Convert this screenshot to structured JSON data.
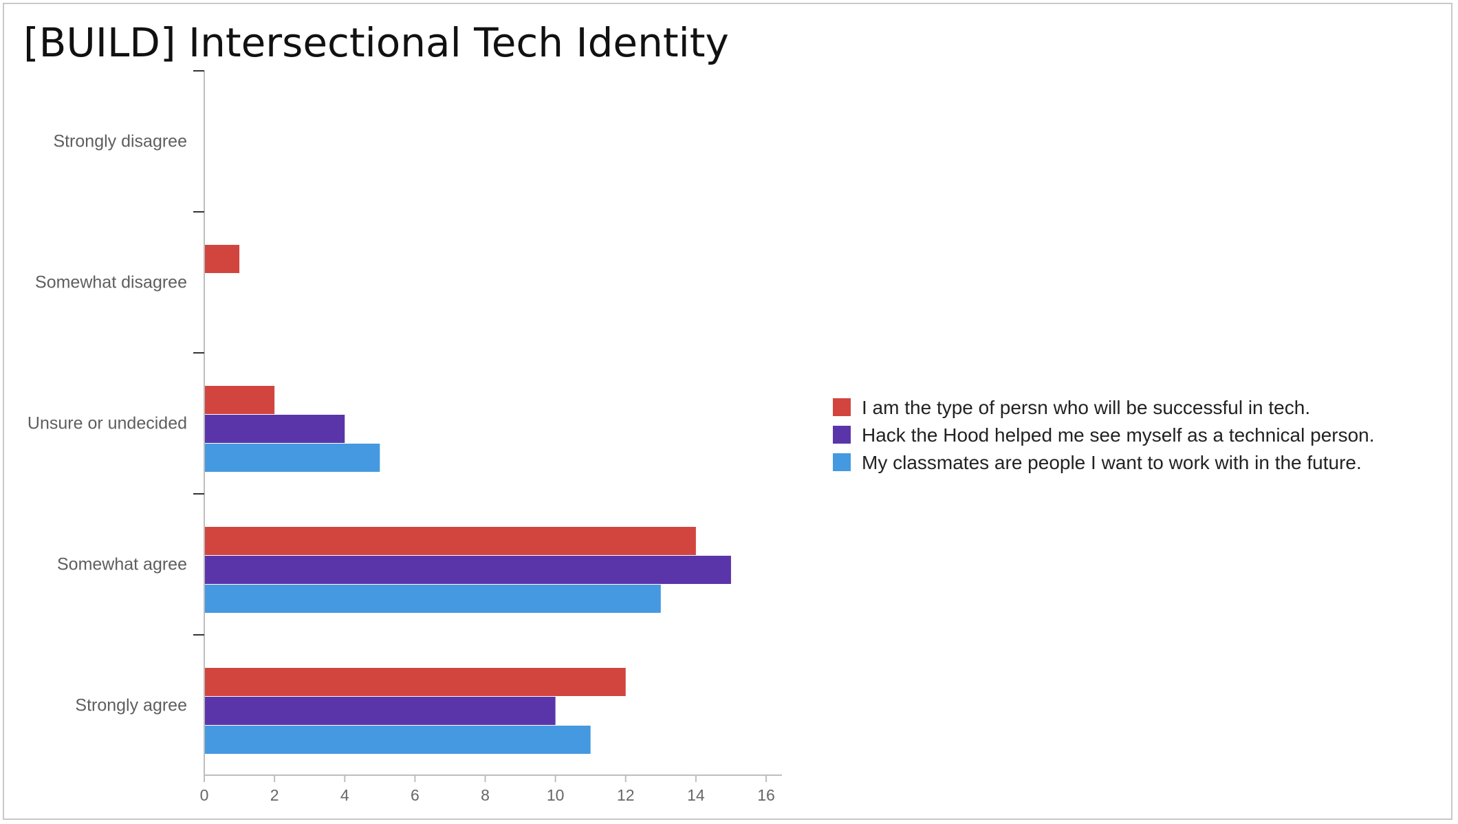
{
  "slide": {
    "title": "[BUILD] Intersectional Tech Identity"
  },
  "chart_data": {
    "type": "bar",
    "orientation": "horizontal",
    "title": "",
    "xlabel": "",
    "ylabel": "",
    "xlim": [
      0,
      16
    ],
    "x_ticks": [
      0,
      2,
      4,
      6,
      8,
      10,
      12,
      14,
      16
    ],
    "categories": [
      "Strongly disagree",
      "Somewhat disagree",
      "Unsure or undecided",
      "Somewhat agree",
      "Strongly agree"
    ],
    "series": [
      {
        "name": "I am the type of persn who will be successful in tech.",
        "color": "#d2453f",
        "values": [
          0,
          1,
          2,
          14,
          12
        ]
      },
      {
        "name": "Hack the Hood helped me see myself as a technical person.",
        "color": "#5a35aa",
        "values": [
          0,
          0,
          4,
          15,
          10
        ]
      },
      {
        "name": "My classmates are people I want to work with in the future.",
        "color": "#4599e0",
        "values": [
          0,
          0,
          5,
          13,
          11
        ]
      }
    ],
    "grid": false,
    "legend_position": "right"
  }
}
